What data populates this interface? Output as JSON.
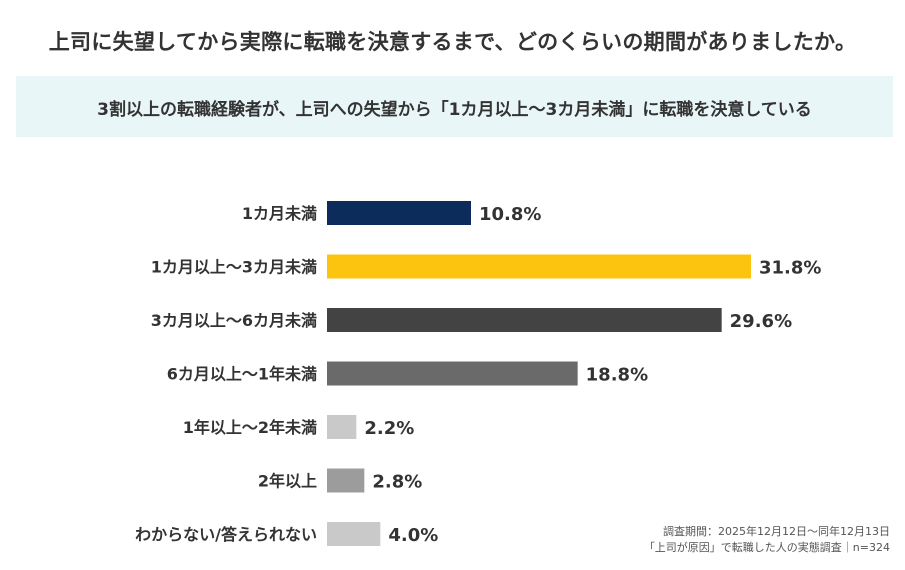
{
  "title": "上司に失望してから実際に転職を決意するまで、どのくらいの期間がありましたか。",
  "subtitle": "3割以上の転職経験者が、上司への失望から「1カ月以上～3カ月未満」に転職を決意している",
  "chart_data": {
    "type": "bar",
    "orientation": "horizontal",
    "categories": [
      "1カ月未満",
      "1カ月以上～3カ月未満",
      "3カ月以上～6カ月未満",
      "6カ月以上～1年未満",
      "1年以上～2年未満",
      "2年以上",
      "わからない/答えられない"
    ],
    "values": [
      10.8,
      31.8,
      29.6,
      18.8,
      2.2,
      2.8,
      4.0
    ],
    "value_labels": [
      "10.8%",
      "31.8%",
      "29.6%",
      "18.8%",
      "2.2%",
      "2.8%",
      "4.0%"
    ],
    "colors": [
      "#0c2c5c",
      "#fdc40f",
      "#434343",
      "#6a6a6a",
      "#c9c9c9",
      "#9c9c9c",
      "#c9c9c9"
    ],
    "xlim": [
      0,
      31.8
    ],
    "grid": false,
    "legend": "none",
    "xlabel": "",
    "ylabel": ""
  },
  "footnote": {
    "line1": "調査期間：2025年12月12日～同年12月13日",
    "line2": "「上司が原因」で転職した人の実態調査｜n=324"
  }
}
